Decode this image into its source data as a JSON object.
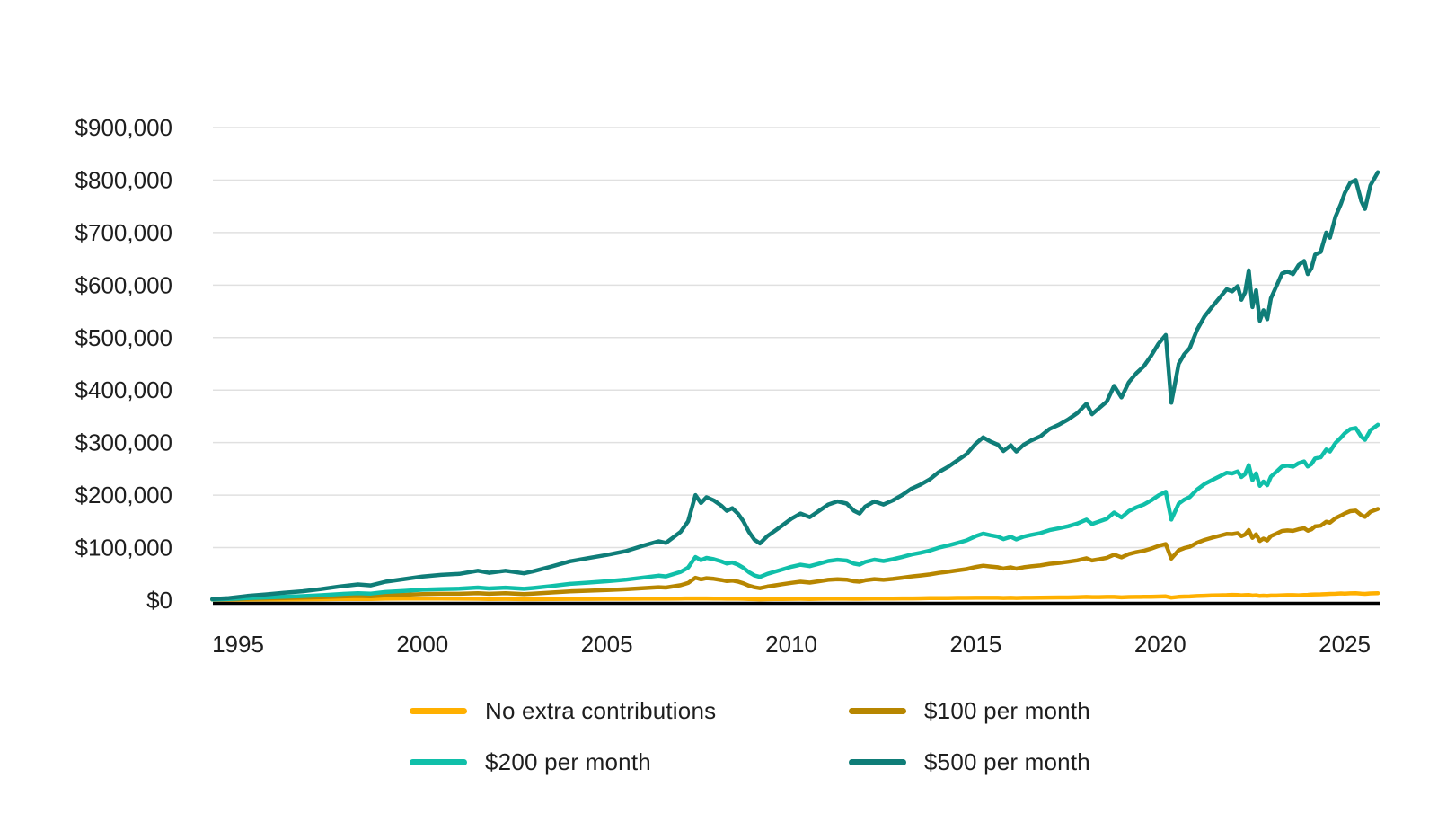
{
  "colors": {
    "background": "#ffffff",
    "grid": "#e0e0e0",
    "axis": "#000000",
    "text": "#1e1e1e",
    "no_extra": "#ffb000",
    "per100": "#b78600",
    "per200": "#10bfa9",
    "per500": "#0f7d78"
  },
  "legend": {
    "items": [
      {
        "label": "No extra contributions",
        "slug": "no-extra-contributions",
        "color": "#ffb000"
      },
      {
        "label": "$100 per month",
        "slug": "100-per-month",
        "color": "#b78600"
      },
      {
        "label": "$200 per month",
        "slug": "200-per-month",
        "color": "#10bfa9"
      },
      {
        "label": "$500 per month",
        "slug": "500-per-month",
        "color": "#0f7d78"
      }
    ]
  },
  "chart_data": {
    "type": "line",
    "title": "",
    "xlabel": "",
    "ylabel": "",
    "grid": "horizontal",
    "legend_position": "bottom",
    "values_unit": "USD thousands",
    "xlim": [
      1994.2,
      2026.0
    ],
    "ylim_k": [
      0,
      900
    ],
    "y_ticks": [
      {
        "value_k": 0,
        "label": "$0"
      },
      {
        "value_k": 100,
        "label": "$100,000"
      },
      {
        "value_k": 200,
        "label": "$200,000"
      },
      {
        "value_k": 300,
        "label": "$300,000"
      },
      {
        "value_k": 400,
        "label": "$400,000"
      },
      {
        "value_k": 500,
        "label": "$500,000"
      },
      {
        "value_k": 600,
        "label": "$600,000"
      },
      {
        "value_k": 700,
        "label": "$700,000"
      },
      {
        "value_k": 800,
        "label": "$800,000"
      },
      {
        "value_k": 900,
        "label": "$900,000"
      }
    ],
    "x_ticks": [
      {
        "value": 1995,
        "label": "1995"
      },
      {
        "value": 2000,
        "label": "2000"
      },
      {
        "value": 2005,
        "label": "2005"
      },
      {
        "value": 2010,
        "label": "2010"
      },
      {
        "value": 2015,
        "label": "2015"
      },
      {
        "value": 2020,
        "label": "2020"
      },
      {
        "value": 2025,
        "label": "2025"
      }
    ],
    "x": [
      1994.3,
      1994.75,
      1995.25,
      1995.75,
      1996.25,
      1996.75,
      1997.25,
      1997.75,
      1998.25,
      1998.6,
      1999.0,
      1999.5,
      2000.0,
      2000.5,
      2001.0,
      2001.5,
      2001.8,
      2002.25,
      2002.75,
      2003.0,
      2003.5,
      2004.0,
      2004.5,
      2005.0,
      2005.5,
      2006.0,
      2006.4,
      2006.6,
      2007.0,
      2007.2,
      2007.4,
      2007.55,
      2007.7,
      2007.9,
      2008.1,
      2008.25,
      2008.4,
      2008.55,
      2008.7,
      2008.85,
      2009.0,
      2009.15,
      2009.35,
      2009.55,
      2009.75,
      2010.0,
      2010.25,
      2010.5,
      2010.75,
      2011.0,
      2011.25,
      2011.5,
      2011.7,
      2011.85,
      2012.0,
      2012.25,
      2012.5,
      2012.75,
      2013.0,
      2013.25,
      2013.5,
      2013.75,
      2014.0,
      2014.25,
      2014.5,
      2014.75,
      2015.0,
      2015.2,
      2015.4,
      2015.6,
      2015.75,
      2015.95,
      2016.1,
      2016.3,
      2016.5,
      2016.75,
      2017.0,
      2017.25,
      2017.5,
      2017.75,
      2018.0,
      2018.15,
      2018.35,
      2018.55,
      2018.75,
      2018.95,
      2019.15,
      2019.35,
      2019.55,
      2019.75,
      2019.95,
      2020.15,
      2020.3,
      2020.5,
      2020.65,
      2020.8,
      2021.0,
      2021.2,
      2021.4,
      2021.6,
      2021.8,
      2021.95,
      2022.1,
      2022.2,
      2022.3,
      2022.4,
      2022.5,
      2022.6,
      2022.7,
      2022.8,
      2022.9,
      2023.0,
      2023.15,
      2023.3,
      2023.45,
      2023.6,
      2023.75,
      2023.9,
      2024.0,
      2024.1,
      2024.2,
      2024.35,
      2024.5,
      2024.6,
      2024.75,
      2024.9,
      2025.0,
      2025.15,
      2025.3,
      2025.45,
      2025.55,
      2025.7,
      2025.9
    ],
    "series": [
      {
        "name": "No extra contributions",
        "slug": "no-extra-contributions",
        "color": "#ffb000",
        "values_k": [
          1.0,
          1.0,
          1.1,
          1.3,
          1.4,
          1.5,
          1.7,
          2.0,
          2.3,
          2.2,
          2.7,
          2.9,
          3.1,
          3.1,
          2.8,
          2.6,
          2.3,
          2.4,
          1.8,
          1.9,
          2.1,
          2.4,
          2.4,
          2.5,
          2.6,
          2.7,
          2.8,
          2.7,
          3.0,
          3.2,
          3.2,
          3.2,
          3.3,
          3.1,
          2.9,
          2.8,
          2.9,
          2.7,
          2.5,
          2.0,
          1.9,
          1.5,
          1.9,
          2.0,
          2.2,
          2.4,
          2.5,
          2.3,
          2.5,
          2.7,
          2.8,
          2.8,
          2.5,
          2.6,
          2.7,
          3.0,
          2.9,
          3.0,
          3.2,
          3.3,
          3.5,
          3.7,
          3.9,
          4.0,
          4.2,
          4.2,
          4.4,
          4.5,
          4.5,
          4.4,
          4.1,
          4.4,
          4.1,
          4.4,
          4.5,
          4.6,
          4.9,
          5.1,
          5.2,
          5.5,
          6.1,
          5.8,
          5.8,
          6.2,
          6.2,
          5.3,
          6.0,
          6.2,
          6.3,
          6.4,
          6.9,
          7.2,
          4.8,
          6.3,
          6.8,
          7.0,
          7.9,
          8.3,
          8.9,
          9.2,
          9.6,
          10.1,
          9.7,
          9.3,
          9.6,
          9.9,
          8.8,
          9.2,
          8.0,
          8.5,
          8.2,
          8.7,
          8.8,
          9.3,
          9.5,
          9.6,
          9.2,
          9.7,
          10.1,
          10.6,
          11.0,
          11.2,
          11.6,
          11.9,
          12.2,
          12.8,
          12.5,
          13.0,
          13.1,
          12.3,
          12.0,
          12.8,
          13.4
        ]
      },
      {
        "name": "$100 per month",
        "slug": "100-per-month",
        "color": "#b78600",
        "values_k": [
          1.2,
          1.6,
          2.5,
          3.2,
          3.9,
          4.6,
          5.6,
          6.8,
          7.8,
          7.4,
          9.2,
          10.3,
          11.5,
          12.1,
          12.2,
          13.3,
          12.2,
          13.1,
          11.6,
          12.5,
          14.5,
          16.7,
          17.9,
          19.2,
          20.7,
          23.0,
          24.6,
          24.0,
          28.4,
          32.6,
          42.6,
          39.6,
          41.8,
          40.5,
          38.3,
          36.2,
          37.3,
          35.2,
          32.0,
          27.6,
          24.5,
          22.8,
          25.9,
          28.0,
          30.2,
          32.9,
          35.0,
          33.4,
          36.0,
          38.6,
          39.8,
          39.0,
          36.0,
          35.1,
          37.8,
          40.0,
          38.7,
          40.4,
          42.6,
          45.0,
          46.8,
          49.0,
          51.9,
          54.0,
          56.6,
          59.0,
          63.1,
          65.6,
          64.0,
          62.7,
          60.1,
          62.5,
          59.9,
          62.7,
          64.4,
          66.1,
          69.1,
          70.9,
          73.0,
          75.6,
          79.7,
          75.4,
          77.8,
          80.6,
          86.6,
          81.4,
          87.8,
          91.4,
          94.0,
          98.1,
          103.1,
          106.8,
          79.0,
          95.0,
          99.0,
          101.6,
          109.3,
          114.6,
          118.7,
          122.4,
          126.1,
          125.7,
          127.4,
          121.8,
          124.9,
          133.5,
          118.6,
          125.4,
          112.8,
          117.2,
          113.6,
          122.0,
          126.6,
          131.8,
          132.8,
          131.9,
          135.0,
          137.0,
          132.3,
          134.9,
          140.4,
          141.6,
          149.3,
          147.5,
          155.8,
          161.2,
          165.0,
          169.4,
          170.5,
          161.8,
          158.6,
          168.2,
          173.7
        ]
      },
      {
        "name": "$200 per month",
        "slug": "200-per-month",
        "color": "#10bfa9",
        "values_k": [
          1.4,
          2.2,
          3.9,
          5.2,
          6.4,
          7.7,
          9.4,
          11.6,
          13.4,
          12.5,
          15.6,
          17.7,
          19.9,
          21.1,
          21.7,
          24.0,
          22.2,
          23.8,
          21.5,
          23.1,
          26.9,
          31.0,
          33.4,
          35.9,
          38.8,
          43.2,
          46.5,
          45.2,
          53.8,
          61.9,
          81.9,
          75.9,
          80.4,
          77.9,
          73.7,
          69.7,
          71.7,
          67.6,
          61.5,
          53.2,
          47.1,
          44.1,
          49.9,
          54.0,
          58.1,
          63.4,
          67.5,
          64.6,
          69.5,
          74.4,
          76.9,
          75.3,
          69.5,
          67.6,
          72.8,
          77.0,
          74.5,
          77.8,
          81.9,
          86.8,
          90.1,
          94.2,
          99.9,
          104.0,
          108.9,
          113.7,
          121.8,
          126.7,
          123.5,
          121.0,
          116.1,
          120.6,
          115.7,
          121.0,
          124.3,
          127.6,
          133.3,
          136.7,
          140.7,
          145.7,
          153.3,
          145.1,
          149.9,
          154.9,
          166.9,
          157.6,
          169.6,
          176.5,
          181.8,
          189.8,
          199.3,
          206.3,
          153.3,
          183.8,
          191.3,
          196.2,
          210.7,
          221.0,
          228.5,
          235.5,
          242.6,
          241.3,
          245.0,
          234.4,
          240.2,
          257.1,
          228.5,
          241.5,
          217.6,
          225.9,
          218.9,
          235.2,
          244.5,
          254.4,
          256.1,
          254.2,
          260.7,
          264.2,
          254.5,
          259.2,
          269.8,
          271.9,
          287.0,
          283.1,
          299.3,
          309.7,
          317.5,
          325.8,
          327.9,
          311.4,
          305.2,
          323.7,
          334.0
        ]
      },
      {
        "name": "$500 per month",
        "slug": "500-per-month",
        "color": "#0f7d78",
        "values_k": [
          2,
          4,
          8,
          11,
          14,
          17,
          21,
          26,
          30,
          28,
          35,
          40,
          45,
          48,
          50,
          56,
          52,
          56,
          51,
          55,
          64,
          74,
          80,
          86,
          93,
          104,
          112,
          109,
          130,
          150,
          200,
          185,
          196,
          190,
          180,
          170,
          175,
          165,
          150,
          130,
          115,
          108,
          122,
          132,
          142,
          155,
          165,
          158,
          170,
          182,
          188,
          184,
          170,
          165,
          178,
          188,
          182,
          190,
          200,
          212,
          220,
          230,
          244,
          254,
          266,
          278,
          298,
          310,
          302,
          296,
          284,
          295,
          283,
          296,
          304,
          312,
          326,
          334,
          344,
          356,
          374,
          354,
          366,
          378,
          408,
          386,
          415,
          432,
          445,
          465,
          488,
          505,
          376,
          450,
          468,
          480,
          515,
          540,
          558,
          575,
          592,
          588,
          598,
          572,
          586,
          628,
          558,
          590,
          532,
          552,
          535,
          575,
          598,
          622,
          626,
          621,
          638,
          646,
          621,
          632,
          658,
          663,
          700,
          690,
          730,
          755,
          775,
          795,
          800,
          760,
          745,
          790,
          815
        ]
      }
    ]
  }
}
